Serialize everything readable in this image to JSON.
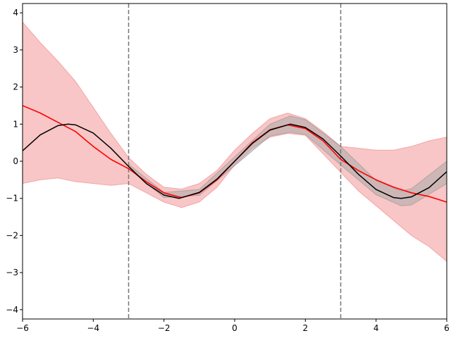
{
  "chart_data": {
    "type": "line",
    "title": "",
    "xlabel": "",
    "ylabel": "",
    "xlim": [
      -6,
      6
    ],
    "ylim": [
      -4.25,
      4.25
    ],
    "x_ticks": [
      -6,
      -4,
      -2,
      0,
      2,
      4,
      6
    ],
    "x_tick_labels": [
      "−6",
      "−4",
      "−2",
      "0",
      "2",
      "4",
      "6"
    ],
    "y_ticks": [
      -4,
      -3,
      -2,
      -1,
      0,
      1,
      2,
      3,
      4
    ],
    "y_tick_labels": [
      "−4",
      "−3",
      "−2",
      "−1",
      "0",
      "1",
      "2",
      "3",
      "4"
    ],
    "grid": false,
    "legend": "none",
    "vertical_lines": [
      -3,
      3
    ],
    "colors": {
      "true_function": "#000000",
      "true_band": "#a9a9a9",
      "noisy_estimate": "#ff0000",
      "noisy_band": "#f08080",
      "reference_lines": "#777777"
    },
    "series": [
      {
        "role": "true-function",
        "x": [
          -6,
          -5.5,
          -5,
          -4.71,
          -4.5,
          -4,
          -3.5,
          -3,
          -2.5,
          -2,
          -1.57,
          -1,
          -0.5,
          0,
          0.5,
          1,
          1.57,
          2,
          2.5,
          3,
          3.5,
          4,
          4.5,
          4.71,
          5,
          5.5,
          6
        ],
        "y": [
          0.28,
          0.71,
          0.96,
          1.0,
          0.98,
          0.76,
          0.35,
          -0.14,
          -0.6,
          -0.91,
          -1.0,
          -0.84,
          -0.48,
          0.0,
          0.48,
          0.84,
          1.0,
          0.91,
          0.6,
          0.14,
          -0.35,
          -0.76,
          -0.98,
          -1.0,
          -0.96,
          -0.71,
          -0.28
        ]
      },
      {
        "role": "true-band",
        "x": [
          -3,
          -2,
          -1,
          0,
          1,
          1.57,
          2,
          3,
          4,
          4.71,
          5,
          6
        ],
        "lower": [
          -0.2,
          -0.98,
          -0.92,
          -0.12,
          0.68,
          0.78,
          0.72,
          -0.1,
          -0.9,
          -1.2,
          -1.18,
          -0.6
        ],
        "upper": [
          -0.08,
          -0.84,
          -0.76,
          0.12,
          1.0,
          1.22,
          1.12,
          0.4,
          -0.52,
          -0.8,
          -0.74,
          0.0
        ]
      },
      {
        "role": "noisy-estimate",
        "x": [
          -6,
          -5.5,
          -5,
          -4.5,
          -4,
          -3.5,
          -3,
          -2.5,
          -2,
          -1.5,
          -1,
          -0.5,
          0,
          0.5,
          1,
          1.5,
          2,
          2.5,
          3,
          3.5,
          4,
          4.5,
          5,
          5.5,
          6
        ],
        "y": [
          1.5,
          1.3,
          1.05,
          0.8,
          0.4,
          0.05,
          -0.2,
          -0.55,
          -0.85,
          -0.98,
          -0.85,
          -0.5,
          0.0,
          0.5,
          0.85,
          0.98,
          0.88,
          0.55,
          0.05,
          -0.25,
          -0.5,
          -0.7,
          -0.85,
          -0.95,
          -1.1
        ]
      },
      {
        "role": "noisy-band",
        "x": [
          -6,
          -5.5,
          -5,
          -4.5,
          -4,
          -3.5,
          -3,
          -2.5,
          -2,
          -1.5,
          -1,
          -0.5,
          0,
          0.5,
          1,
          1.5,
          2,
          2.5,
          3,
          3.5,
          4,
          4.5,
          5,
          5.5,
          6
        ],
        "lower": [
          -0.6,
          -0.5,
          -0.45,
          -0.55,
          -0.6,
          -0.65,
          -0.6,
          -0.85,
          -1.1,
          -1.25,
          -1.1,
          -0.7,
          -0.1,
          0.35,
          0.65,
          0.75,
          0.7,
          0.2,
          -0.3,
          -0.8,
          -1.2,
          -1.6,
          -2.0,
          -2.3,
          -2.7
        ],
        "upper": [
          3.75,
          3.2,
          2.7,
          2.15,
          1.45,
          0.75,
          0.1,
          -0.35,
          -0.7,
          -0.75,
          -0.6,
          -0.25,
          0.3,
          0.75,
          1.15,
          1.3,
          1.15,
          0.8,
          0.4,
          0.35,
          0.3,
          0.3,
          0.4,
          0.55,
          0.65
        ]
      }
    ]
  }
}
